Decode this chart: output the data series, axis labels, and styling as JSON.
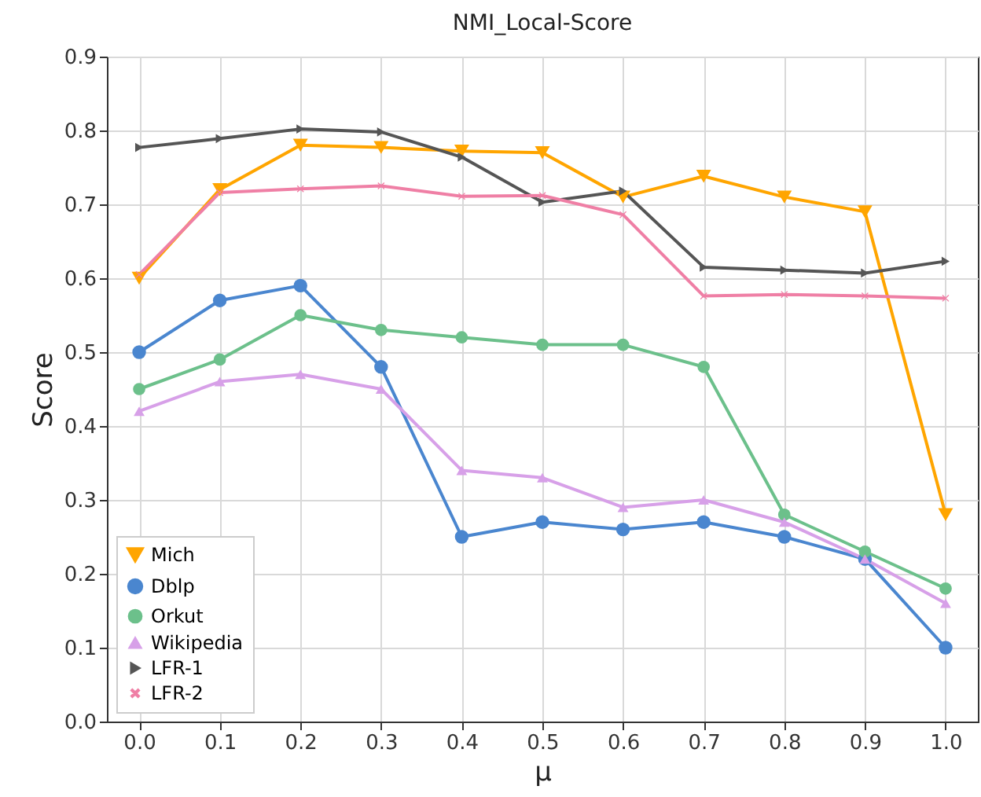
{
  "chart_data": {
    "type": "line",
    "title": "NMI_Local-Score",
    "xlabel": "μ",
    "ylabel": "Score",
    "x": [
      0.0,
      0.1,
      0.2,
      0.3,
      0.4,
      0.5,
      0.6,
      0.7,
      0.8,
      0.9,
      1.0
    ],
    "xlim": [
      -0.04,
      1.04
    ],
    "xticks": [
      {
        "value": 0,
        "label": "0.0"
      },
      0.1,
      0.2,
      0.3,
      0.4,
      0.5,
      0.6,
      0.7,
      0.8,
      0.9,
      {
        "value": 1,
        "label": "1.0"
      }
    ],
    "ylim": [
      0,
      0.9
    ],
    "yticks": [
      {
        "value": 0,
        "label": "0.0"
      },
      0.1,
      0.2,
      0.3,
      0.4,
      0.5,
      0.6,
      0.7,
      0.8,
      0.9
    ],
    "grid": true,
    "legend": "bottom left",
    "series": [
      {
        "name": "Mich",
        "color": "#ffa500",
        "marker": "triangle-down",
        "values": [
          0.6,
          0.72,
          0.78,
          0.777,
          0.772,
          0.77,
          0.71,
          0.738,
          0.71,
          0.69,
          0.28
        ]
      },
      {
        "name": "Dblp",
        "color": "#4a86cf",
        "marker": "circle-small",
        "values": [
          0.5,
          0.57,
          0.59,
          0.48,
          0.25,
          0.27,
          0.26,
          0.27,
          0.25,
          0.22,
          0.1
        ]
      },
      {
        "name": "Orkut",
        "color": "#6cc08b",
        "marker": "circle",
        "values": [
          0.45,
          0.49,
          0.55,
          0.53,
          0.52,
          0.51,
          0.51,
          0.48,
          0.28,
          0.23,
          0.18
        ]
      },
      {
        "name": "Wikipedia",
        "color": "#d7a0e8",
        "marker": "triangle",
        "values": [
          0.42,
          0.46,
          0.47,
          0.45,
          0.34,
          0.33,
          0.29,
          0.3,
          0.27,
          0.22,
          0.16
        ]
      },
      {
        "name": "LFR-1",
        "color": "#555555",
        "marker": "triangle-right",
        "values": [
          0.777,
          0.789,
          0.802,
          0.798,
          0.764,
          0.703,
          0.718,
          0.615,
          0.611,
          0.607,
          0.623
        ]
      },
      {
        "name": "LFR-2",
        "color": "#ef7fa5",
        "marker": "cross",
        "values": [
          0.605,
          0.716,
          0.721,
          0.725,
          0.711,
          0.712,
          0.686,
          0.576,
          0.578,
          0.576,
          0.573
        ]
      }
    ]
  }
}
